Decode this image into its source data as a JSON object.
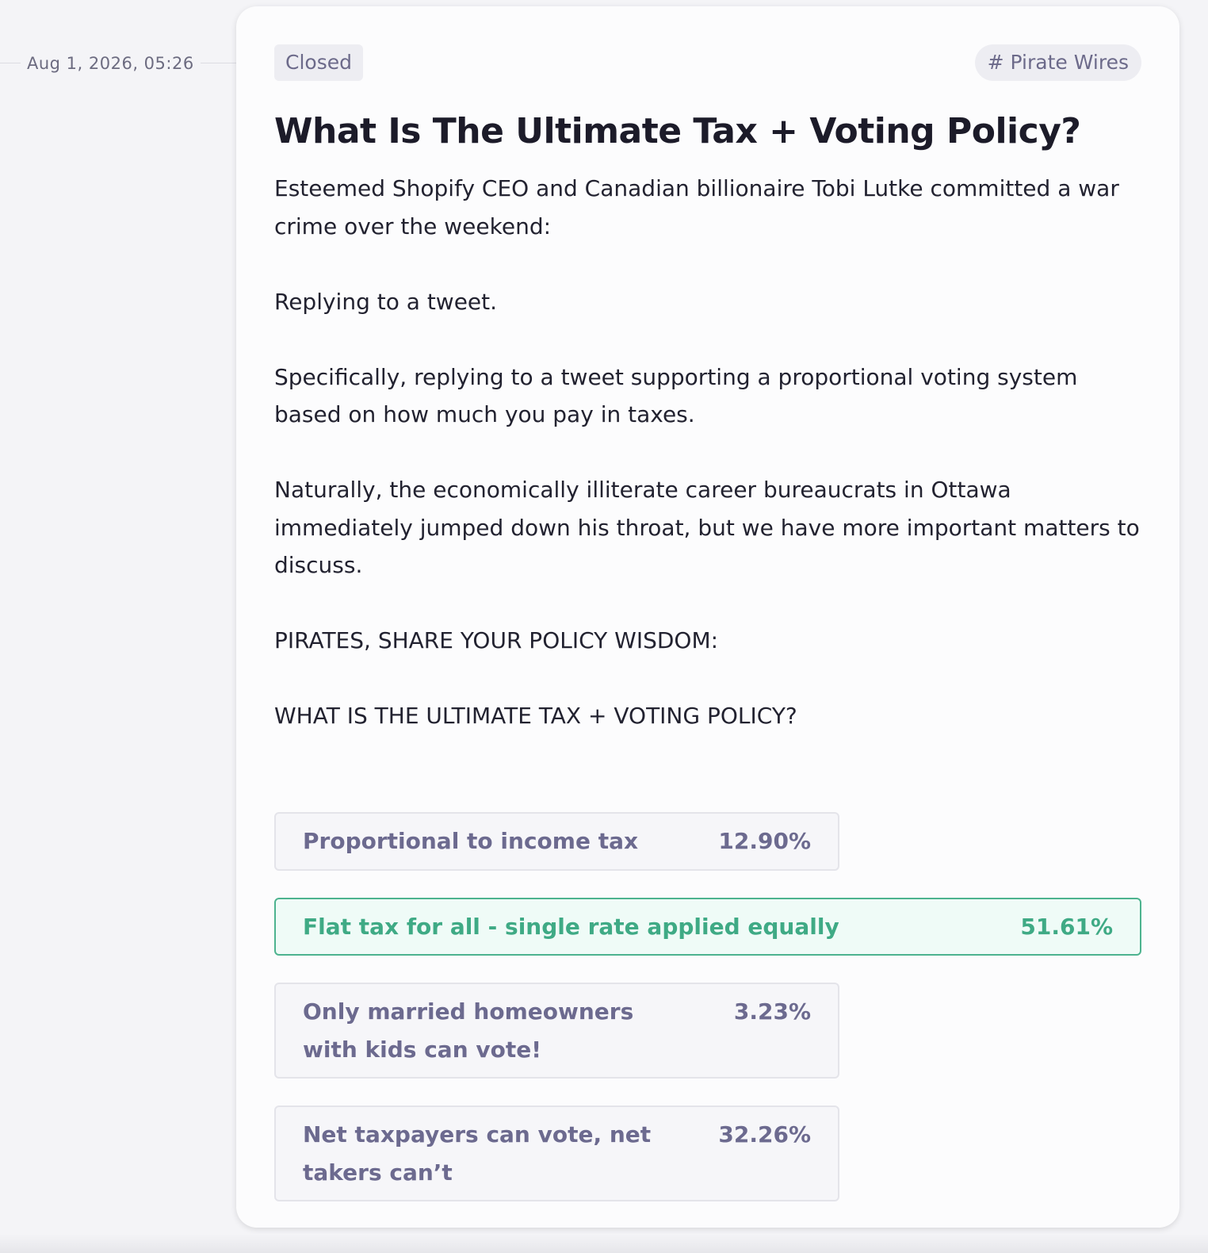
{
  "timestamp": "Aug 1, 2026, 05:26",
  "status": "Closed",
  "tag": "# Pirate Wires",
  "title": "What Is The Ultimate Tax + Voting Policy?",
  "body": [
    "Esteemed Shopify CEO and Canadian billionaire Tobi Lutke committed a war crime over the weekend:",
    "Replying to a tweet.",
    "Specifically, replying to a tweet supporting a proportional voting system based on how much you pay in taxes.",
    "Naturally, the economically illiterate career bureaucrats in Ottawa immediately jumped down his throat, but we have more important matters to discuss.",
    "PIRATES, SHARE YOUR POLICY WISDOM:",
    "WHAT IS THE ULTIMATE TAX + VOTING POLICY?"
  ],
  "options": [
    {
      "label": "Proportional to income tax",
      "percent": "12.90%",
      "winner": false
    },
    {
      "label": "Flat tax for all - single rate applied equally",
      "percent": "51.61%",
      "winner": true
    },
    {
      "label": "Only married homeowners with kids can vote!",
      "percent": "3.23%",
      "winner": false
    },
    {
      "label": "Net taxpayers can vote, net takers can’t",
      "percent": "32.26%",
      "winner": false
    }
  ]
}
